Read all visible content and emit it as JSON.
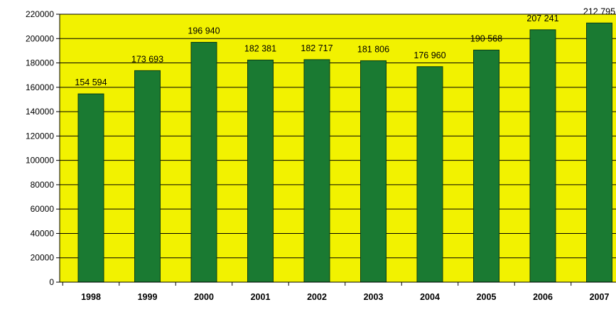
{
  "chart_data": {
    "type": "bar",
    "title": "",
    "xlabel": "",
    "ylabel": "",
    "categories": [
      "1998",
      "1999",
      "2000",
      "2001",
      "2002",
      "2003",
      "2004",
      "2005",
      "2006",
      "2007"
    ],
    "values": [
      154594,
      173693,
      196940,
      182381,
      182717,
      181806,
      176960,
      190568,
      207241,
      212795
    ],
    "data_labels": [
      "154 594",
      "173 693",
      "196 940",
      "182 381",
      "182 717",
      "181 806",
      "176 960",
      "190 568",
      "207 241",
      "212 795"
    ],
    "ylim": [
      0,
      220000
    ],
    "yticks": [
      0,
      20000,
      40000,
      60000,
      80000,
      100000,
      120000,
      140000,
      160000,
      180000,
      200000,
      220000
    ],
    "ytick_labels": [
      "0",
      "20000",
      "40000",
      "60000",
      "80000",
      "100000",
      "120000",
      "140000",
      "160000",
      "180000",
      "200000",
      "220000"
    ],
    "grid": true,
    "legend": "none",
    "colors": {
      "plot_background": "#f2f200",
      "bar_fill": "#1a7a32",
      "bar_stroke": "#0a3d18",
      "gridline": "#000000",
      "axis": "#000000",
      "text": "#000000"
    }
  }
}
